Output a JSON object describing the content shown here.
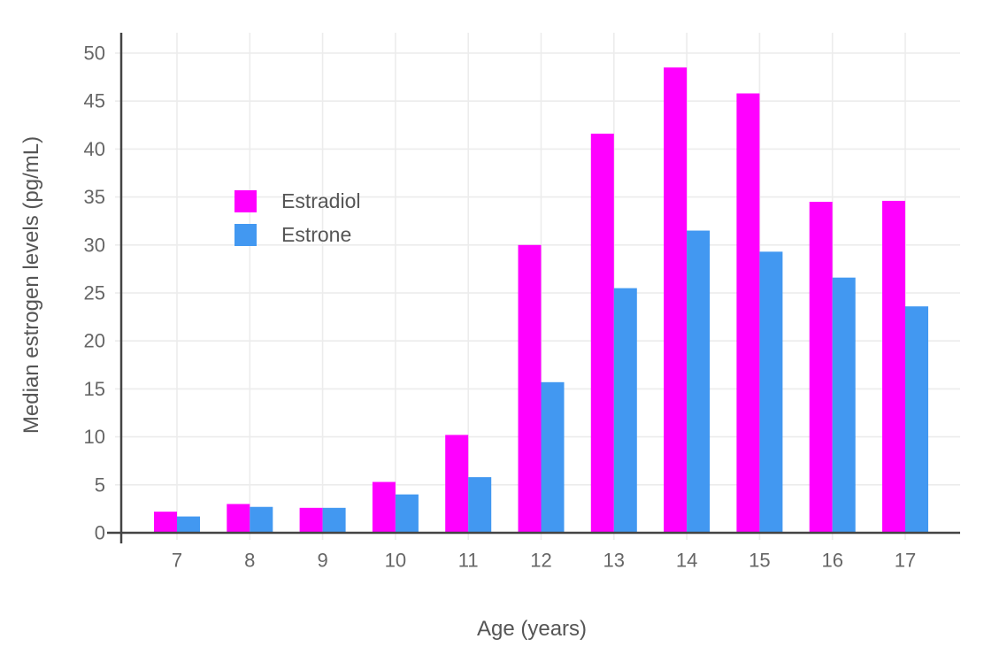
{
  "chart_data": {
    "type": "bar",
    "bar_mode": "grouped",
    "title": "",
    "xlabel": "Age (years)",
    "ylabel": "Median estrogen levels (pg/mL)",
    "categories": [
      7,
      8,
      9,
      10,
      11,
      12,
      13,
      14,
      15,
      16,
      17
    ],
    "series": [
      {
        "name": "Estradiol",
        "color": "#FF00FF",
        "values": [
          2.2,
          3.0,
          2.6,
          5.3,
          10.2,
          30.0,
          41.6,
          48.5,
          45.8,
          34.5,
          34.6
        ]
      },
      {
        "name": "Estrone",
        "color": "#4298F1",
        "values": [
          1.7,
          2.7,
          2.6,
          4.0,
          5.8,
          15.7,
          25.5,
          31.5,
          29.3,
          26.6,
          23.6
        ]
      }
    ],
    "ylim": [
      0,
      50
    ],
    "y_ticks": [
      0,
      5,
      10,
      15,
      20,
      25,
      30,
      35,
      40,
      45,
      50
    ],
    "grid": true,
    "legend_position": "inside top-left"
  },
  "style": {
    "background": "#FFFFFF",
    "axis_line_color": "#444444",
    "grid_color": "#ECECEC",
    "tick_label_color": "#666666",
    "axis_title_color": "#555555"
  }
}
